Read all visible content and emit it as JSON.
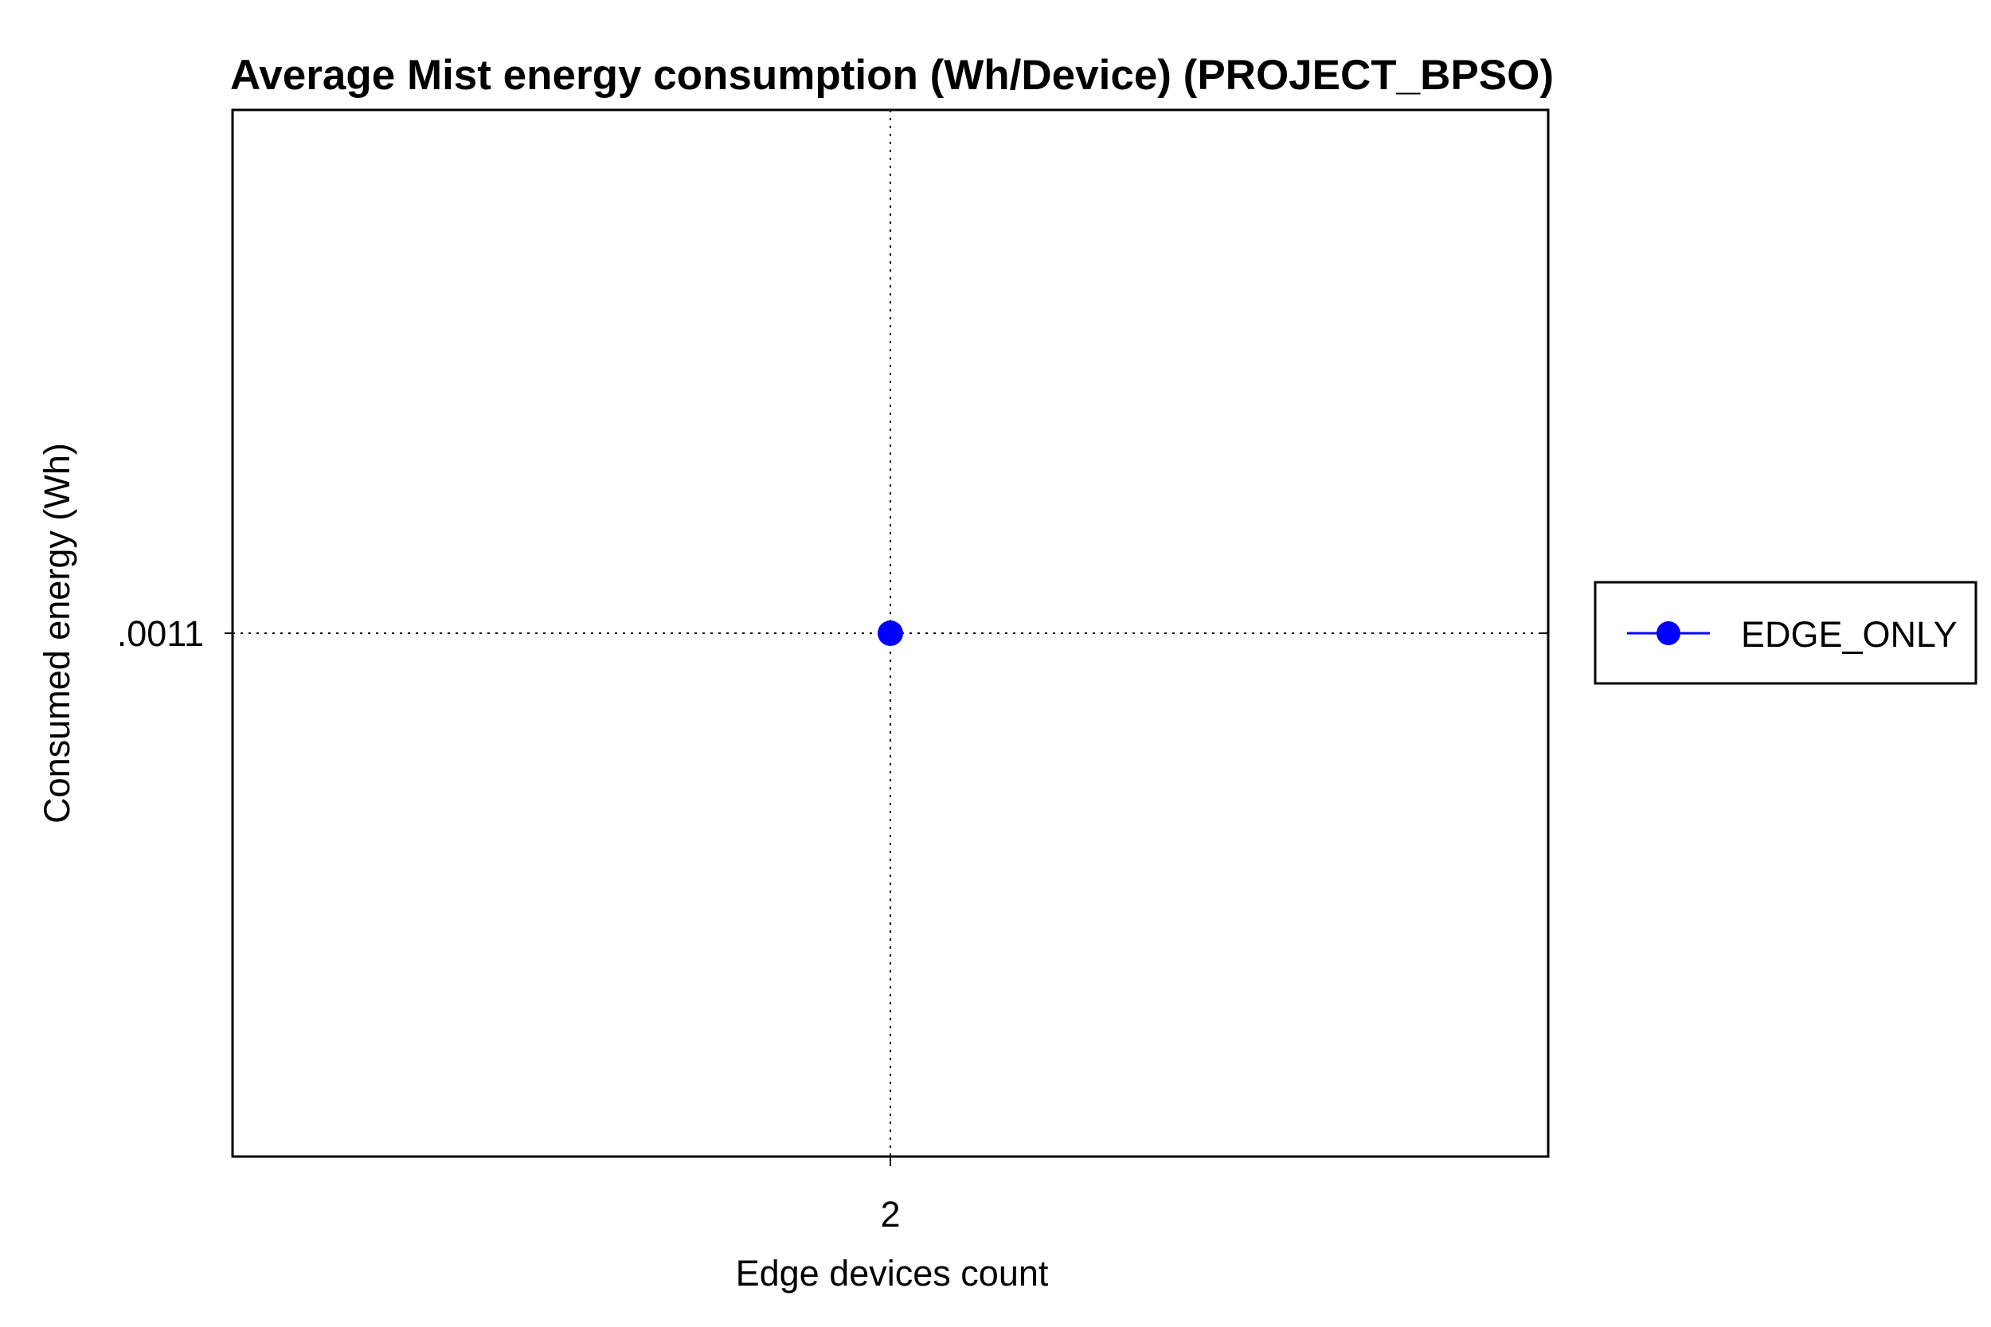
{
  "chart_data": {
    "type": "line",
    "title": "Average Mist energy consumption (Wh/Device) (PROJECT_BPSO)",
    "xlabel": "Edge devices count",
    "ylabel": "Consumed energy (Wh)",
    "x_ticks": [
      "2"
    ],
    "y_ticks": [
      ".0011"
    ],
    "xlim": [
      1,
      3
    ],
    "ylim": [
      0.001,
      0.0012
    ],
    "grid": true,
    "legend_position": "right",
    "series": [
      {
        "name": "EDGE_ONLY",
        "color": "#0000ff",
        "marker": "circle",
        "x": [
          2
        ],
        "y": [
          0.0011
        ]
      }
    ]
  }
}
